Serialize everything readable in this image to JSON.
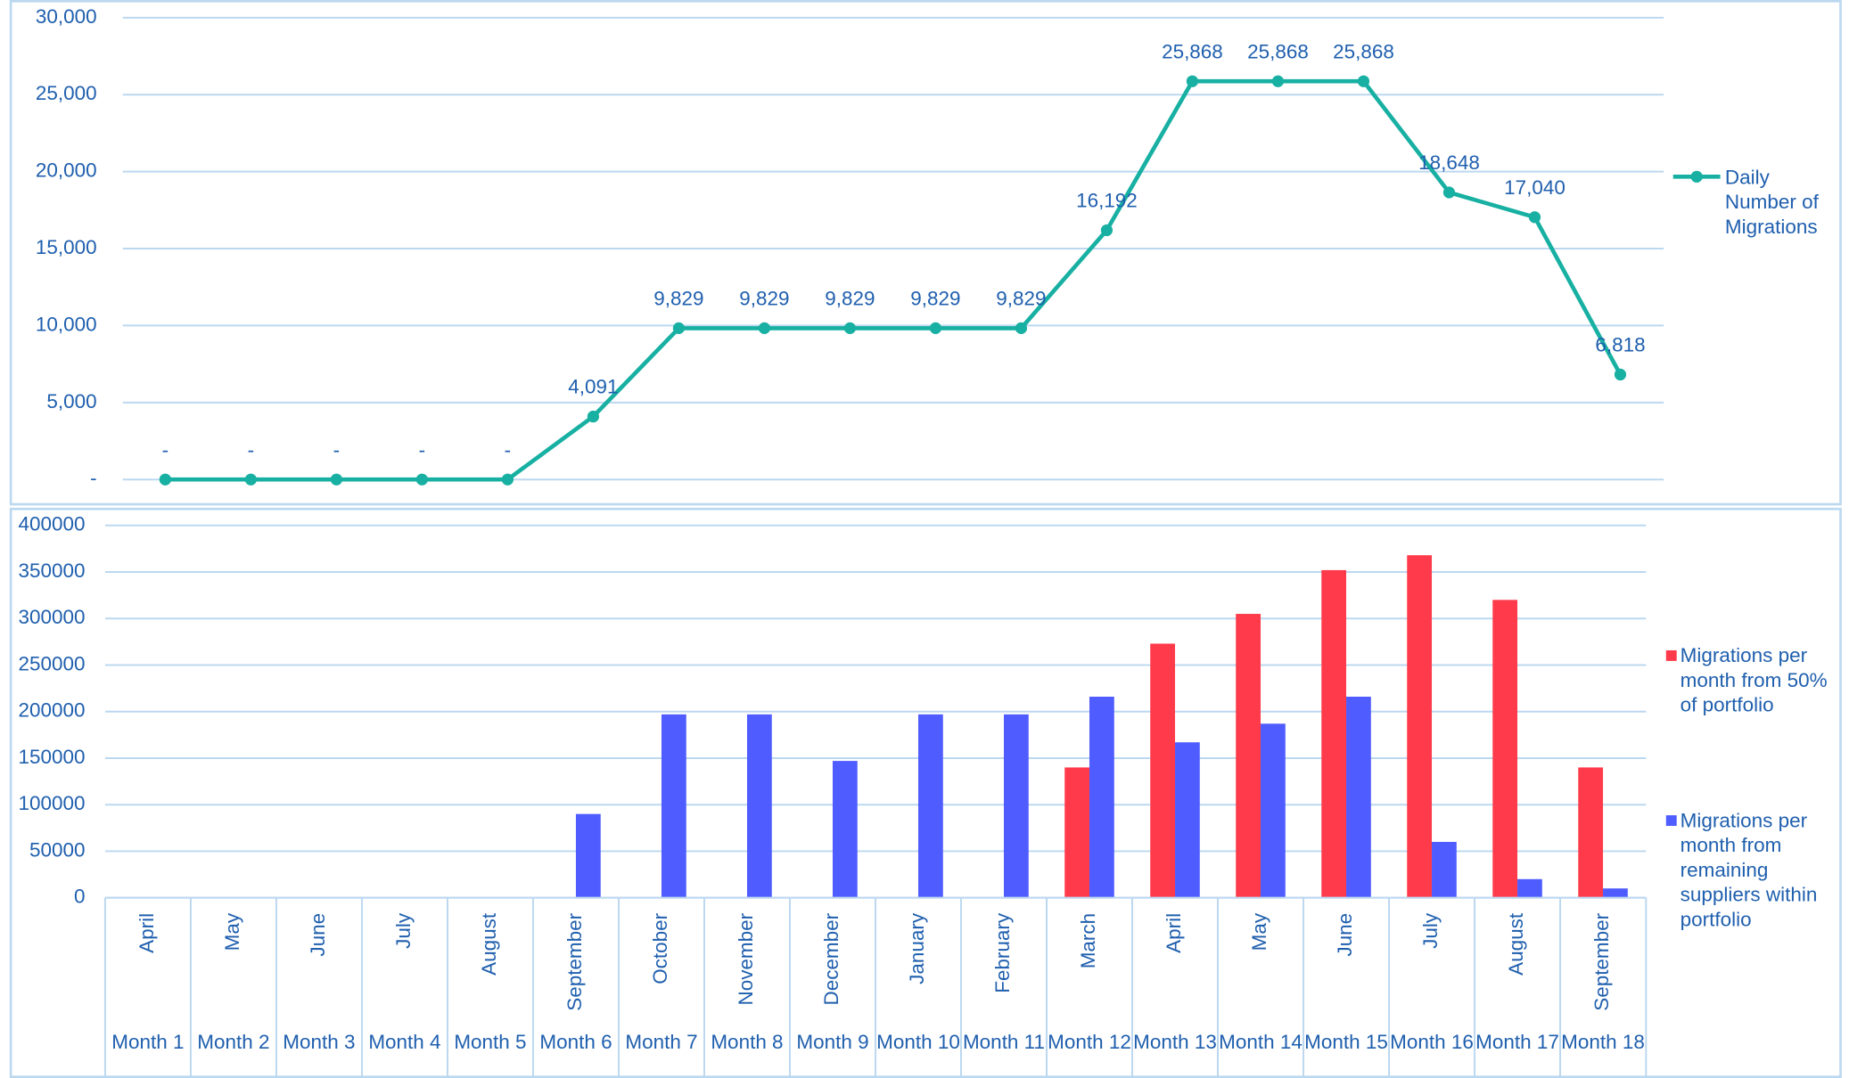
{
  "chart_data": [
    {
      "type": "line",
      "series": [
        {
          "name": "Daily Number of Migrations",
          "color": "#17b0a2",
          "values": [
            0,
            0,
            0,
            0,
            0,
            4091,
            9829,
            9829,
            9829,
            9829,
            9829,
            16192,
            25868,
            25868,
            25868,
            18648,
            17040,
            6818
          ],
          "value_labels": [
            "-",
            "-",
            "-",
            "-",
            "-",
            "4,091",
            "9,829",
            "9,829",
            "9,829",
            "9,829",
            "9,829",
            "16,192",
            "25,868",
            "25,868",
            "25,868",
            "18,648",
            "17,040",
            "6,818"
          ]
        }
      ],
      "ylim": [
        0,
        30000
      ],
      "yticks": [
        {
          "value": 0,
          "label": "-"
        },
        {
          "value": 5000,
          "label": "5,000"
        },
        {
          "value": 10000,
          "label": "10,000"
        },
        {
          "value": 15000,
          "label": "15,000"
        },
        {
          "value": 20000,
          "label": "20,000"
        },
        {
          "value": 25000,
          "label": "25,000"
        },
        {
          "value": 30000,
          "label": "30,000"
        }
      ],
      "grid": true,
      "legend": "right"
    },
    {
      "type": "bar",
      "categories": [
        "April",
        "May",
        "June",
        "July",
        "August",
        "September",
        "October",
        "November",
        "December",
        "January",
        "February",
        "March",
        "April",
        "May",
        "June",
        "July",
        "August",
        "September"
      ],
      "periods": [
        "Month 1",
        "Month 2",
        "Month 3",
        "Month 4",
        "Month 5",
        "Month 6",
        "Month 7",
        "Month 8",
        "Month 9",
        "Month 10",
        "Month 11",
        "Month 12",
        "Month 13",
        "Month 14",
        "Month 15",
        "Month 16",
        "Month 17",
        "Month 18"
      ],
      "series": [
        {
          "name": "Migrations per month from 50% of portfolio",
          "color": "#ff3a4a",
          "values": [
            0,
            0,
            0,
            0,
            0,
            0,
            0,
            0,
            0,
            0,
            0,
            140000,
            273000,
            305000,
            352000,
            368000,
            320000,
            140000
          ]
        },
        {
          "name": "Migrations per month from remaining suppliers within portfolio",
          "color": "#4f5cff",
          "values": [
            0,
            0,
            0,
            0,
            0,
            90000,
            197000,
            197000,
            147000,
            197000,
            197000,
            216000,
            167000,
            187000,
            216000,
            60000,
            20000,
            10000
          ]
        }
      ],
      "ylim": [
        0,
        400000
      ],
      "yticks": [
        0,
        50000,
        100000,
        150000,
        200000,
        250000,
        300000,
        350000,
        400000
      ],
      "grid": true,
      "legend": "right"
    }
  ]
}
